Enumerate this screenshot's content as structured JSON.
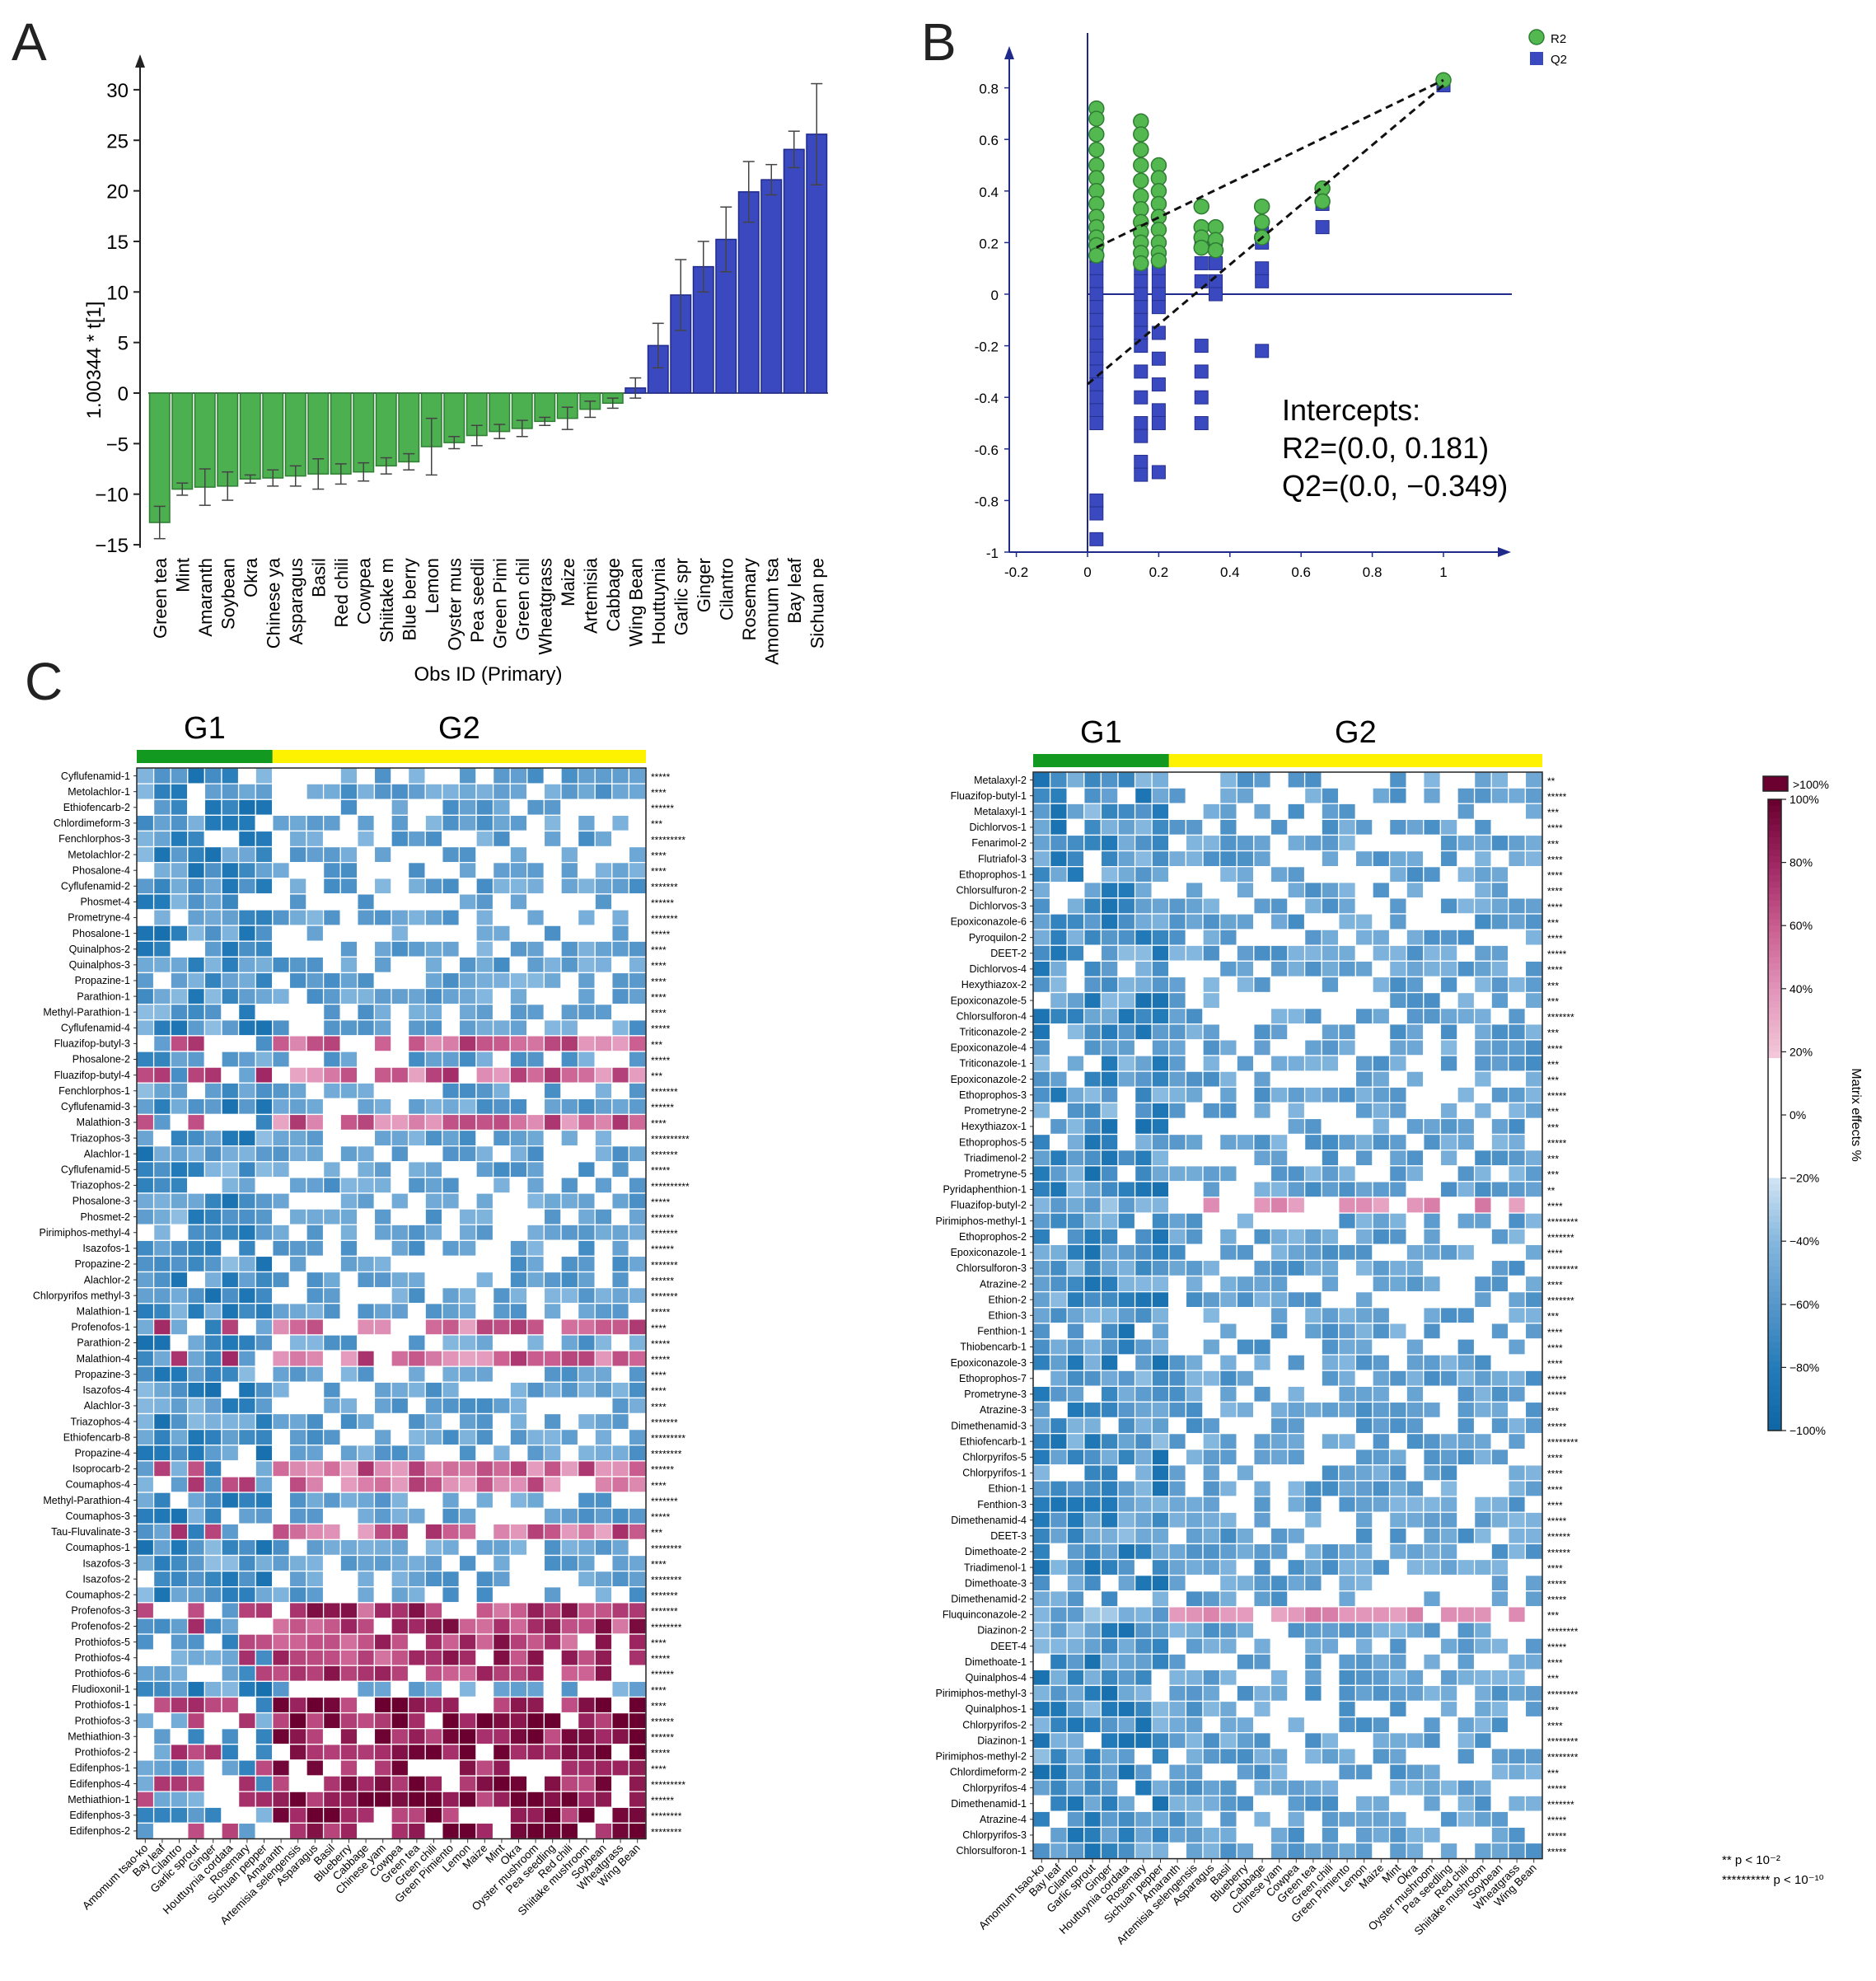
{
  "panels": {
    "a": "A",
    "b": "B",
    "c": "C"
  },
  "colors": {
    "green": "#4caf50",
    "green_dark": "#2e7d32",
    "blue": "#3a49c0",
    "blue_dark": "#1f2a8a",
    "g1_bar": "#119a1f",
    "g2_bar": "#fff200",
    "hm_pos_max": "#6b0030",
    "hm_pos_mid": "#c8507f",
    "hm_pos_low": "#f4c7d8",
    "hm_neg_low": "#cfe3f2",
    "hm_neg_mid": "#6fa9d6",
    "hm_neg_max": "#0d66a3"
  },
  "chart_data": [
    {
      "type": "bar",
      "panel": "A",
      "title": "",
      "xlabel": "Obs ID (Primary)",
      "ylabel": "1.00344 * t[1]",
      "ylim": [
        -15,
        33
      ],
      "yticks": [
        "30",
        "25",
        "20",
        "15",
        "10",
        "5",
        "0",
        "−5",
        "−10",
        "−15"
      ],
      "categories": [
        "Green tea",
        "Mint",
        "Amaranth",
        "Soybean",
        "Okra",
        "Chinese ya",
        "Asparagus",
        "Basil",
        "Red chili",
        "Cowpea",
        "Shiitake m",
        "Blue berry",
        "Lemon",
        "Oyster mus",
        "Pea seedli",
        "Green Pimi",
        "Green chil",
        "Wheatgrass",
        "Maize",
        "Artemisia",
        "Cabbage",
        "Wing Bean",
        "Houttuynia",
        "Garlic spr",
        "Ginger",
        "Cilantro",
        "Rosemary",
        "Amomum tsa",
        "Bay leaf",
        "Sichuan pe"
      ],
      "values": [
        -12.8,
        -9.5,
        -9.3,
        -9.2,
        -8.5,
        -8.4,
        -8.2,
        -8.0,
        -8.0,
        -7.8,
        -7.2,
        -6.8,
        -5.3,
        -4.9,
        -4.2,
        -3.8,
        -3.5,
        -2.8,
        -2.5,
        -1.6,
        -1.0,
        0.5,
        4.7,
        9.7,
        12.5,
        15.2,
        19.9,
        21.1,
        24.1,
        25.6
      ],
      "errors": [
        1.6,
        0.6,
        1.8,
        1.4,
        0.4,
        0.8,
        1.0,
        1.5,
        1.0,
        0.9,
        0.8,
        0.8,
        2.8,
        0.6,
        1.0,
        0.7,
        0.8,
        0.4,
        1.1,
        0.8,
        0.5,
        1.0,
        2.2,
        3.5,
        2.5,
        3.2,
        3.0,
        1.5,
        1.8,
        5.0
      ],
      "series_colors": {
        "negative": "green",
        "positive": "blue"
      }
    },
    {
      "type": "scatter",
      "panel": "B",
      "xlim": [
        -0.2,
        1.2
      ],
      "ylim": [
        -1,
        0.9
      ],
      "xticks": [
        "-0.2",
        "0",
        "0.2",
        "0.4",
        "0.6",
        "0.8",
        "1"
      ],
      "yticks": [
        "0.8",
        "0.6",
        "0.4",
        "0.2",
        "0",
        "-0.2",
        "-0.4",
        "-0.6",
        "-0.8",
        "-1"
      ],
      "legend": [
        {
          "name": "R2",
          "marker": "circle"
        },
        {
          "name": "Q2",
          "marker": "square"
        }
      ],
      "legend_position": "top-right",
      "series": [
        {
          "name": "R2",
          "x": [
            0.025,
            0.025,
            0.025,
            0.025,
            0.025,
            0.025,
            0.025,
            0.025,
            0.025,
            0.025,
            0.025,
            0.025,
            0.025,
            0.15,
            0.15,
            0.15,
            0.15,
            0.15,
            0.15,
            0.15,
            0.15,
            0.15,
            0.15,
            0.15,
            0.15,
            0.2,
            0.2,
            0.2,
            0.2,
            0.2,
            0.2,
            0.2,
            0.2,
            0.2,
            0.32,
            0.32,
            0.32,
            0.32,
            0.36,
            0.36,
            0.36,
            0.49,
            0.49,
            0.49,
            0.66,
            0.66,
            1.0
          ],
          "y": [
            0.72,
            0.68,
            0.62,
            0.56,
            0.5,
            0.45,
            0.4,
            0.35,
            0.3,
            0.26,
            0.22,
            0.19,
            0.15,
            0.67,
            0.62,
            0.56,
            0.5,
            0.44,
            0.38,
            0.33,
            0.28,
            0.24,
            0.2,
            0.16,
            0.12,
            0.5,
            0.45,
            0.4,
            0.35,
            0.3,
            0.25,
            0.2,
            0.16,
            0.13,
            0.34,
            0.26,
            0.22,
            0.18,
            0.26,
            0.21,
            0.17,
            0.34,
            0.28,
            0.22,
            0.41,
            0.36,
            0.83
          ]
        },
        {
          "name": "Q2",
          "x": [
            0.025,
            0.025,
            0.025,
            0.025,
            0.025,
            0.025,
            0.025,
            0.025,
            0.025,
            0.025,
            0.025,
            0.025,
            0.025,
            0.025,
            0.025,
            0.025,
            0.025,
            0.15,
            0.15,
            0.15,
            0.15,
            0.15,
            0.15,
            0.15,
            0.15,
            0.15,
            0.15,
            0.15,
            0.15,
            0.15,
            0.2,
            0.2,
            0.2,
            0.2,
            0.2,
            0.2,
            0.2,
            0.2,
            0.2,
            0.2,
            0.32,
            0.32,
            0.32,
            0.32,
            0.32,
            0.32,
            0.32,
            0.36,
            0.36,
            0.36,
            0.36,
            0.49,
            0.49,
            0.49,
            0.49,
            0.49,
            0.66,
            0.66,
            1.0
          ],
          "y": [
            0.15,
            0.1,
            0.05,
            0.0,
            -0.05,
            -0.1,
            -0.15,
            -0.2,
            -0.25,
            -0.3,
            -0.35,
            -0.4,
            -0.45,
            -0.5,
            -0.8,
            -0.85,
            -0.95,
            0.1,
            0.05,
            0.0,
            -0.05,
            -0.1,
            -0.15,
            -0.2,
            -0.3,
            -0.4,
            -0.5,
            -0.55,
            -0.65,
            -0.7,
            0.1,
            0.05,
            0.0,
            -0.05,
            -0.15,
            -0.25,
            -0.35,
            -0.45,
            -0.5,
            -0.69,
            0.2,
            0.12,
            0.05,
            -0.2,
            -0.3,
            -0.4,
            -0.5,
            0.2,
            0.12,
            0.05,
            0.0,
            0.27,
            0.2,
            0.1,
            0.05,
            -0.22,
            0.35,
            0.26,
            0.81
          ]
        }
      ],
      "regression_lines": [
        {
          "name": "R2",
          "x": [
            0.025,
            1.0
          ],
          "y": [
            0.181,
            0.83
          ]
        },
        {
          "name": "Q2",
          "x": [
            0.0,
            1.0
          ],
          "y": [
            -0.349,
            0.81
          ]
        }
      ],
      "annotation": [
        "Intercepts:",
        "R2=(0.0, 0.181)",
        "Q2=(0.0, −0.349)"
      ]
    },
    {
      "type": "heatmap",
      "panel": "C-left",
      "groups": [
        {
          "label": "G1",
          "count": 8,
          "color": "g1_bar"
        },
        {
          "label": "G2",
          "count": 23,
          "color": "g2_bar"
        }
      ],
      "columns": [
        "Amomum tsao-ko",
        "Bay leaf",
        "Cilantro",
        "Garlic sprout",
        "Ginger",
        "Houttuynia cordata",
        "Rosemary",
        "Sichuan pepper",
        "Amaranth",
        "Artemisia selengensis",
        "Asparagus",
        "Basil",
        "Blueberry",
        "Cabbage",
        "Chinese yam",
        "Cowpea",
        "Green tea",
        "Green chili",
        "Green Pimiento",
        "Lemon",
        "Maize",
        "Mint",
        "Okra",
        "Oyster mushroom",
        "Pea seedling",
        "Red chili",
        "Shiitake mushroom",
        "Soybean",
        "Wheatgrass",
        "Wing Bean"
      ],
      "rows": [
        "Cyflufenamid-1",
        "Metolachlor-1",
        "Ethiofencarb-2",
        "Chlordimeform-3",
        "Fenchlorphos-3",
        "Metolachlor-2",
        "Phosalone-4",
        "Cyflufenamid-2",
        "Phosmet-4",
        "Prometryne-4",
        "Phosalone-1",
        "Quinalphos-2",
        "Quinalphos-3",
        "Propazine-1",
        "Parathion-1",
        "Methyl-Parathion-1",
        "Cyflufenamid-4",
        "Fluazifop-butyl-3",
        "Phosalone-2",
        "Fluazifop-butyl-4",
        "Fenchlorphos-1",
        "Cyflufenamid-3",
        "Malathion-3",
        "Triazophos-3",
        "Alachlor-1",
        "Cyflufenamid-5",
        "Triazophos-2",
        "Phosalone-3",
        "Phosmet-2",
        "Pirimiphos-methyl-4",
        "Isazofos-1",
        "Propazine-2",
        "Alachlor-2",
        "Chlorpyrifos methyl-3",
        "Malathion-1",
        "Profenofos-1",
        "Parathion-2",
        "Malathion-4",
        "Propazine-3",
        "Isazofos-4",
        "Alachlor-3",
        "Triazophos-4",
        "Ethiofencarb-8",
        "Propazine-4",
        "Isoprocarb-2",
        "Coumaphos-4",
        "Methyl-Parathion-4",
        "Coumaphos-3",
        "Tau-Fluvalinate-3",
        "Coumaphos-1",
        "Isazofos-3",
        "Isazofos-2",
        "Coumaphos-2",
        "Profenofos-3",
        "Profenofos-2",
        "Prothiofos-5",
        "Prothiofos-4",
        "Prothiofos-6",
        "Fludioxonil-1",
        "Prothiofos-1",
        "Prothiofos-3",
        "Methiathion-3",
        "Prothiofos-2",
        "Edifenphos-1",
        "Edifenphos-4",
        "Methiathion-1",
        "Edifenphos-3",
        "Edifenphos-2"
      ],
      "significance": [
        "*****",
        "****",
        "******",
        "***",
        "*********",
        "****",
        "****",
        "*******",
        "******",
        "*******",
        "*****",
        "****",
        "****",
        "****",
        "****",
        "****",
        "*****",
        "***",
        "*****",
        "***",
        "*******",
        "******",
        "****",
        "**********",
        "*******",
        "*****",
        "**********",
        "*****",
        "******",
        "*******",
        "******",
        "*******",
        "******",
        "*******",
        "*****",
        "****",
        "*****",
        "*****",
        "****",
        "****",
        "****",
        "*******",
        "*********",
        "********",
        "******",
        "****",
        "*******",
        "*****",
        "***",
        "********",
        "****",
        "********",
        "*******",
        "*******",
        "********",
        "****",
        "*****",
        "******",
        "****",
        "****",
        "******",
        "******",
        "*****",
        "****",
        "*********",
        "******",
        "********",
        "********"
      ]
    },
    {
      "type": "heatmap",
      "panel": "C-right",
      "groups": [
        {
          "label": "G1",
          "count": 8,
          "color": "g1_bar"
        },
        {
          "label": "G2",
          "count": 23,
          "color": "g2_bar"
        }
      ],
      "columns": [
        "Amomum tsao-ko",
        "Bay leaf",
        "Cilantro",
        "Garlic sprout",
        "Ginger",
        "Houttuynia cordata",
        "Rosemary",
        "Sichuan pepper",
        "Amaranth",
        "Artemisia selengensis",
        "Asparagus",
        "Basil",
        "Blueberry",
        "Cabbage",
        "Chinese yam",
        "Cowpea",
        "Green tea",
        "Green chili",
        "Green Pimiento",
        "Lemon",
        "Maize",
        "Mint",
        "Okra",
        "Oyster mushroom",
        "Pea seedling",
        "Red chili",
        "Shiitake mushroom",
        "Soybean",
        "Wheatgrass",
        "Wing Bean"
      ],
      "rows": [
        "Metalaxyl-2",
        "Fluazifop-butyl-1",
        "Metalaxyl-1",
        "Dichlorvos-1",
        "Fenarimol-2",
        "Flutriafol-3",
        "Ethoprophos-1",
        "Chlorsulfuron-2",
        "Dichlorvos-3",
        "Epoxiconazole-6",
        "Pyroquilon-2",
        "DEET-2",
        "Dichlorvos-4",
        "Hexythiazox-2",
        "Epoxiconazole-5",
        "Chlorsulforon-4",
        "Triticonazole-2",
        "Epoxiconazole-4",
        "Triticonazole-1",
        "Epoxiconazole-2",
        "Ethoprophos-3",
        "Prometryne-2",
        "Hexythiazox-1",
        "Ethoprophos-5",
        "Triadimenol-2",
        "Prometryne-5",
        "Pyridaphenthion-1",
        "Fluazifop-butyl-2",
        "Pirimiphos-methyl-1",
        "Ethoprophos-2",
        "Epoxiconazole-1",
        "Chlorsulforon-3",
        "Atrazine-2",
        "Ethion-2",
        "Ethion-3",
        "Fenthion-1",
        "Thiobencarb-1",
        "Epoxiconazole-3",
        "Ethoprophos-7",
        "Prometryne-3",
        "Atrazine-3",
        "Dimethenamid-3",
        "Ethiofencarb-1",
        "Chlorpyrifos-5",
        "Chlorpyrifos-1",
        "Ethion-1",
        "Fenthion-3",
        "Dimethenamid-4",
        "DEET-3",
        "Dimethoate-2",
        "Triadimenol-1",
        "Dimethoate-3",
        "Dimethenamid-2",
        "Fluquinconazole-2",
        "Diazinon-2",
        "DEET-4",
        "Dimethoate-1",
        "Quinalphos-4",
        "Pirimiphos-methyl-3",
        "Quinalphos-1",
        "Chlorpyrifos-2",
        "Diazinon-1",
        "Pirimiphos-methyl-2",
        "Chlordimeform-2",
        "Chlorpyrifos-4",
        "Dimethenamid-1",
        "Atrazine-4",
        "Chlorpyrifos-3",
        "Chlorsulforon-1"
      ],
      "significance": [
        "**",
        "*****",
        "***",
        "****",
        "***",
        "****",
        "****",
        "****",
        "****",
        "***",
        "****",
        "*****",
        "****",
        "***",
        "***",
        "*******",
        "***",
        "****",
        "***",
        "***",
        "*****",
        "***",
        "***",
        "*****",
        "***",
        "***",
        "**",
        "****",
        "********",
        "*******",
        "****",
        "********",
        "****",
        "*******",
        "***",
        "****",
        "****",
        "****",
        "*****",
        "*****",
        "***",
        "*****",
        "********",
        "****",
        "****",
        "****",
        "****",
        "*****",
        "******",
        "******",
        "****",
        "*****",
        "*****",
        "***",
        "********",
        "*****",
        "****",
        "***",
        "********",
        "***",
        "****",
        "********",
        "********",
        "***",
        "*****",
        "*******",
        "*****",
        "*****",
        "*****"
      ],
      "colorbar": {
        "label": "Matrix effects %",
        "ticks": [
          "100%",
          "80%",
          "60%",
          "40%",
          "20%",
          "0%",
          "−20%",
          "−40%",
          "−60%",
          "−80%",
          "−100%"
        ],
        "over_label": ">100%"
      },
      "significance_legend": [
        {
          "stars": "**",
          "text": "p < 10⁻²"
        },
        {
          "stars": "**********",
          "text": "p < 10⁻¹⁰"
        }
      ]
    }
  ]
}
